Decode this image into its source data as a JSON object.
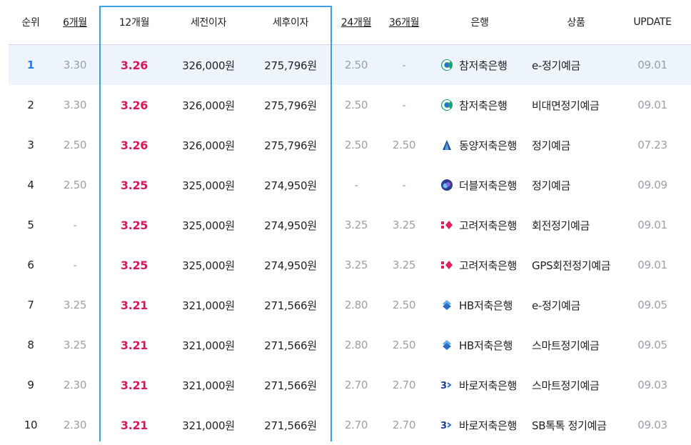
{
  "headers": {
    "rank": "순위",
    "m6": "6개월",
    "m12": "12개월",
    "pretax": "세전이자",
    "aftertax": "세후이자",
    "m24": "24개월",
    "m36": "36개월",
    "bank": "은행",
    "product": "상품",
    "update": "UPDATE"
  },
  "rows": [
    {
      "rank": "1",
      "m6": "3.30",
      "m12": "3.26",
      "pretax": "326,000원",
      "aftertax": "275,796원",
      "m24": "2.50",
      "m36": "-",
      "bank": "참저축은행",
      "icon": "cham-bank-logo-icon",
      "product": "e-정기예금",
      "update": "09.01"
    },
    {
      "rank": "2",
      "m6": "3.30",
      "m12": "3.26",
      "pretax": "326,000원",
      "aftertax": "275,796원",
      "m24": "2.50",
      "m36": "-",
      "bank": "참저축은행",
      "icon": "cham-bank-logo-icon",
      "product": "비대면정기예금",
      "update": "09.01"
    },
    {
      "rank": "3",
      "m6": "2.50",
      "m12": "3.26",
      "pretax": "326,000원",
      "aftertax": "275,796원",
      "m24": "2.50",
      "m36": "2.50",
      "bank": "동양저축은행",
      "icon": "dongyang-bank-logo-icon",
      "product": "정기예금",
      "update": "07.23"
    },
    {
      "rank": "4",
      "m6": "2.50",
      "m12": "3.25",
      "pretax": "325,000원",
      "aftertax": "274,950원",
      "m24": "-",
      "m36": "-",
      "bank": "더블저축은행",
      "icon": "double-bank-logo-icon",
      "product": "정기예금",
      "update": "09.09"
    },
    {
      "rank": "5",
      "m6": "-",
      "m12": "3.25",
      "pretax": "325,000원",
      "aftertax": "274,950원",
      "m24": "3.25",
      "m36": "3.25",
      "bank": "고려저축은행",
      "icon": "korea-bank-logo-icon",
      "product": "회전정기예금",
      "update": "09.01"
    },
    {
      "rank": "6",
      "m6": "-",
      "m12": "3.25",
      "pretax": "325,000원",
      "aftertax": "274,950원",
      "m24": "3.25",
      "m36": "3.25",
      "bank": "고려저축은행",
      "icon": "korea-bank-logo-icon",
      "product": "GPS회전정기예금",
      "update": "09.01"
    },
    {
      "rank": "7",
      "m6": "3.25",
      "m12": "3.21",
      "pretax": "321,000원",
      "aftertax": "271,566원",
      "m24": "2.80",
      "m36": "2.50",
      "bank": "HB저축은행",
      "icon": "hb-bank-logo-icon",
      "product": "e-정기예금",
      "update": "09.05"
    },
    {
      "rank": "8",
      "m6": "3.25",
      "m12": "3.21",
      "pretax": "321,000원",
      "aftertax": "271,566원",
      "m24": "2.80",
      "m36": "2.50",
      "bank": "HB저축은행",
      "icon": "hb-bank-logo-icon",
      "product": "스마트정기예금",
      "update": "09.05"
    },
    {
      "rank": "9",
      "m6": "2.30",
      "m12": "3.21",
      "pretax": "321,000원",
      "aftertax": "271,566원",
      "m24": "2.70",
      "m36": "2.70",
      "bank": "바로저축은행",
      "icon": "baro-bank-logo-icon",
      "product": "스마트정기예금",
      "update": "09.03"
    },
    {
      "rank": "10",
      "m6": "2.30",
      "m12": "3.21",
      "pretax": "321,000원",
      "aftertax": "271,566원",
      "m24": "2.70",
      "m36": "2.70",
      "bank": "바로저축은행",
      "icon": "baro-bank-logo-icon",
      "product": "SB톡톡 정기예금",
      "update": "09.03"
    }
  ],
  "colors": {
    "accent_rate": "#d6185a",
    "highlight_border": "#3aa0e6",
    "highlight_row": "#eef4fb",
    "muted": "#9aa0a6"
  }
}
